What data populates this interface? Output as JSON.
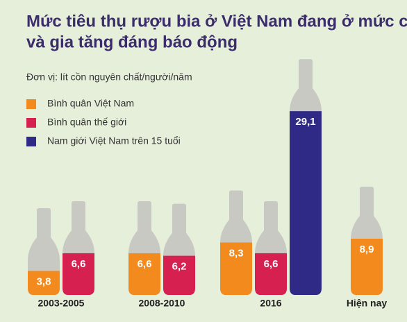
{
  "chart_data": {
    "type": "bar",
    "title": [
      "Mức tiêu thụ rượu bia ở Việt Nam đang ở mức cao",
      "và gia tăng đáng báo động"
    ],
    "subtitle": "Đơn vị: lít cồn nguyên chất/người/năm",
    "categories": [
      "2003-2005",
      "2008-2010",
      "2016",
      "Hiện nay"
    ],
    "series": [
      {
        "name": "Bình quân Việt Nam",
        "color": "#f28a1e",
        "values": [
          3.8,
          6.6,
          8.3,
          8.9
        ],
        "value_labels": [
          "3,8",
          "6,6",
          "8,3",
          "8,9"
        ]
      },
      {
        "name": "Bình quân thế giới",
        "color": "#d6204f",
        "values": [
          6.6,
          6.2,
          6.6,
          null
        ],
        "value_labels": [
          "6,6",
          "6,2",
          "6,6",
          null
        ]
      },
      {
        "name": "Nam giới Việt Nam trên 15 tuổi",
        "color": "#2e2a86",
        "values": [
          null,
          null,
          29.1,
          null
        ],
        "value_labels": [
          null,
          null,
          "29,1",
          null
        ]
      }
    ]
  }
}
